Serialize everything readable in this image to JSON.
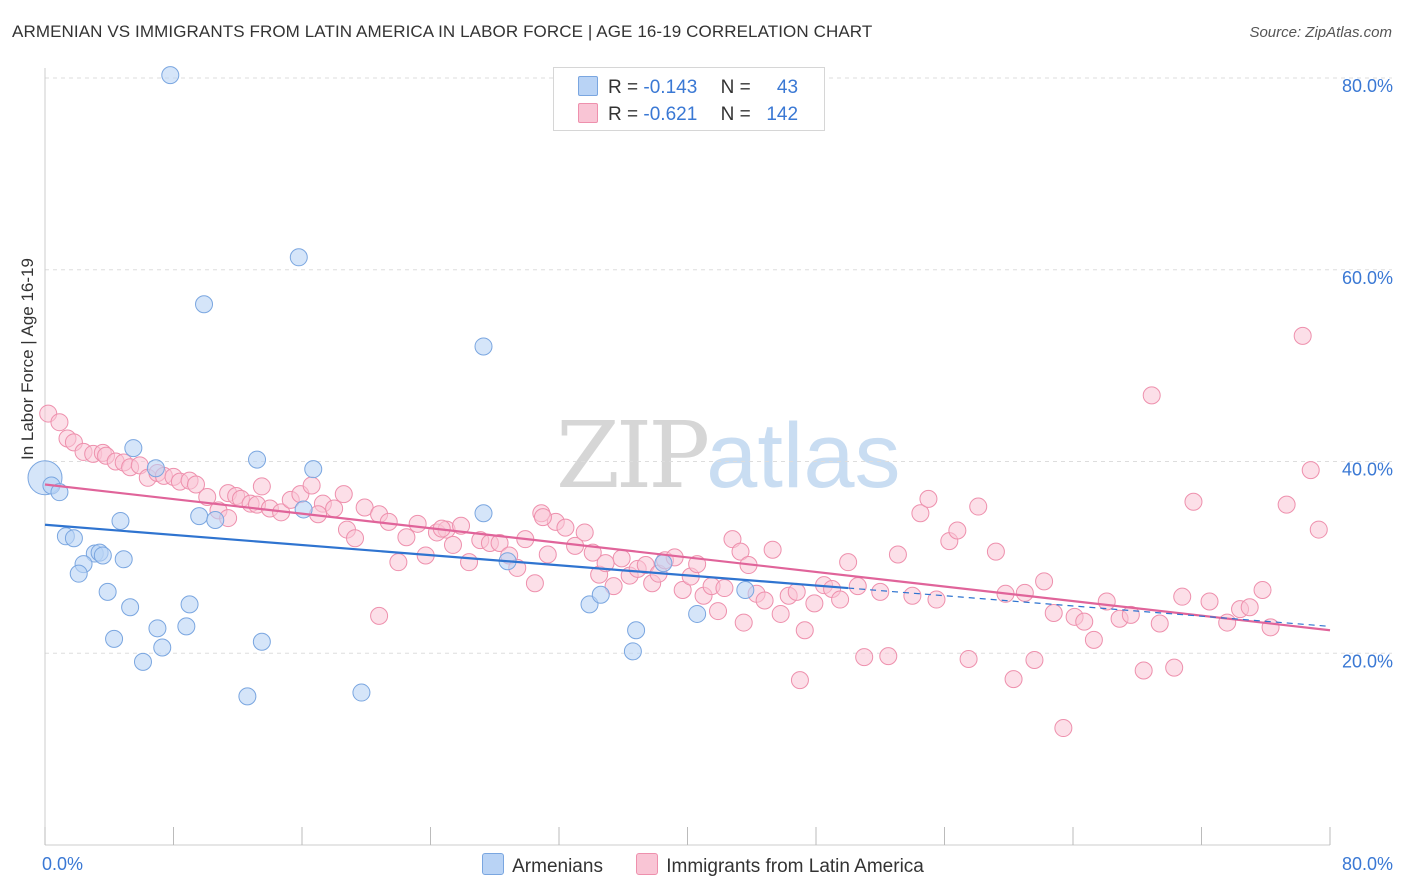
{
  "title": "ARMENIAN VS IMMIGRANTS FROM LATIN AMERICA IN LABOR FORCE | AGE 16-19 CORRELATION CHART",
  "source": "Source: ZipAtlas.com",
  "watermark": {
    "zip": "ZIP",
    "atlas": "atlas"
  },
  "colors": {
    "armenian_fill": "#b9d3f5",
    "armenian_stroke": "#7aa6e0",
    "armenian_line": "#2f74d0",
    "latin_fill": "#f9c5d5",
    "latin_stroke": "#ee90ad",
    "latin_line": "#e0649a",
    "grid": "#dddddd",
    "tick_label": "#3a78d4"
  },
  "legend_top": {
    "rows": [
      {
        "r_label": "R =",
        "r_value": "-0.143",
        "n_label": "N =",
        "n_value": "43"
      },
      {
        "r_label": "R =",
        "r_value": "-0.621",
        "n_label": "N =",
        "n_value": "142"
      }
    ]
  },
  "legend_bottom": [
    "Armenians",
    "Immigrants from Latin America"
  ],
  "chart_data": {
    "type": "scatter",
    "title": "ARMENIAN VS IMMIGRANTS FROM LATIN AMERICA IN LABOR FORCE | AGE 16-19 CORRELATION CHART",
    "xlabel": "",
    "ylabel": "In Labor Force | Age 16-19",
    "xlim": [
      0,
      80
    ],
    "ylim": [
      0,
      80
    ],
    "x_tick_labels": [
      "0.0%",
      "80.0%"
    ],
    "y_ticks": [
      20,
      40,
      60,
      80
    ],
    "y_tick_labels": [
      "20.0%",
      "40.0%",
      "60.0%",
      "80.0%"
    ],
    "grid": true,
    "legend_position": "top-center",
    "series": [
      {
        "name": "Armenians",
        "r": -0.143,
        "n": 43,
        "trend": {
          "x0": 0,
          "y0": 33.4,
          "x1": 50,
          "y1": 26.8,
          "dashed_to": 80,
          "dashed_y": 22.8
        },
        "points": [
          [
            7.8,
            80.3
          ],
          [
            15.8,
            61.3
          ],
          [
            9.9,
            56.4
          ],
          [
            27.3,
            52.0
          ],
          [
            0.0,
            38.3
          ],
          [
            0.4,
            37.5
          ],
          [
            0.9,
            36.8
          ],
          [
            5.5,
            41.4
          ],
          [
            13.2,
            40.2
          ],
          [
            16.7,
            39.2
          ],
          [
            6.9,
            39.3
          ],
          [
            16.1,
            35.0
          ],
          [
            27.3,
            34.6
          ],
          [
            9.6,
            34.3
          ],
          [
            10.6,
            33.9
          ],
          [
            4.7,
            33.8
          ],
          [
            1.3,
            32.2
          ],
          [
            1.8,
            32.0
          ],
          [
            3.1,
            30.4
          ],
          [
            3.4,
            30.5
          ],
          [
            3.6,
            30.2
          ],
          [
            4.9,
            29.8
          ],
          [
            2.4,
            29.3
          ],
          [
            2.1,
            28.3
          ],
          [
            3.9,
            26.4
          ],
          [
            5.3,
            24.8
          ],
          [
            9.0,
            25.1
          ],
          [
            8.8,
            22.8
          ],
          [
            7.0,
            22.6
          ],
          [
            4.3,
            21.5
          ],
          [
            13.5,
            21.2
          ],
          [
            7.3,
            20.6
          ],
          [
            6.1,
            19.1
          ],
          [
            12.6,
            15.5
          ],
          [
            19.7,
            15.9
          ],
          [
            28.8,
            29.6
          ],
          [
            33.9,
            25.1
          ],
          [
            34.6,
            26.1
          ],
          [
            36.8,
            22.4
          ],
          [
            36.6,
            20.2
          ],
          [
            38.5,
            29.4
          ],
          [
            40.6,
            24.1
          ],
          [
            43.6,
            26.6
          ]
        ]
      },
      {
        "name": "Immigrants from Latin America",
        "r": -0.621,
        "n": 142,
        "trend": {
          "x0": 0,
          "y0": 37.6,
          "x1": 80,
          "y1": 22.4
        },
        "points": [
          [
            0.2,
            45.0
          ],
          [
            0.9,
            44.1
          ],
          [
            1.4,
            42.4
          ],
          [
            1.8,
            42.0
          ],
          [
            2.4,
            41.0
          ],
          [
            3.0,
            40.8
          ],
          [
            3.6,
            40.9
          ],
          [
            3.8,
            40.6
          ],
          [
            4.4,
            40.0
          ],
          [
            4.9,
            39.9
          ],
          [
            5.3,
            39.4
          ],
          [
            5.9,
            39.6
          ],
          [
            6.4,
            38.3
          ],
          [
            7.0,
            38.8
          ],
          [
            7.4,
            38.5
          ],
          [
            8.0,
            38.4
          ],
          [
            8.4,
            37.9
          ],
          [
            9.0,
            38.0
          ],
          [
            9.4,
            37.6
          ],
          [
            10.1,
            36.3
          ],
          [
            10.8,
            34.9
          ],
          [
            11.4,
            36.7
          ],
          [
            11.9,
            36.4
          ],
          [
            12.2,
            36.1
          ],
          [
            12.8,
            35.6
          ],
          [
            13.2,
            35.5
          ],
          [
            13.5,
            37.4
          ],
          [
            14.0,
            35.1
          ],
          [
            14.7,
            34.7
          ],
          [
            15.3,
            36.0
          ],
          [
            15.9,
            36.6
          ],
          [
            16.6,
            37.5
          ],
          [
            17.3,
            35.6
          ],
          [
            18.0,
            35.1
          ],
          [
            18.8,
            32.9
          ],
          [
            19.3,
            32.0
          ],
          [
            18.6,
            36.6
          ],
          [
            19.9,
            35.2
          ],
          [
            20.8,
            34.5
          ],
          [
            21.4,
            33.7
          ],
          [
            22.0,
            29.5
          ],
          [
            22.5,
            32.1
          ],
          [
            23.2,
            33.5
          ],
          [
            23.7,
            30.2
          ],
          [
            24.4,
            32.6
          ],
          [
            25.0,
            32.9
          ],
          [
            25.4,
            31.3
          ],
          [
            25.9,
            33.3
          ],
          [
            26.4,
            29.5
          ],
          [
            27.1,
            31.8
          ],
          [
            27.7,
            31.5
          ],
          [
            28.3,
            31.5
          ],
          [
            28.9,
            30.2
          ],
          [
            29.4,
            28.9
          ],
          [
            29.9,
            31.9
          ],
          [
            30.5,
            27.3
          ],
          [
            30.9,
            34.6
          ],
          [
            31.3,
            30.3
          ],
          [
            31.8,
            33.7
          ],
          [
            32.4,
            33.1
          ],
          [
            33.0,
            31.2
          ],
          [
            33.6,
            32.6
          ],
          [
            34.1,
            30.5
          ],
          [
            34.5,
            28.2
          ],
          [
            34.9,
            29.4
          ],
          [
            35.4,
            27.0
          ],
          [
            35.9,
            29.9
          ],
          [
            36.4,
            28.1
          ],
          [
            36.9,
            28.8
          ],
          [
            37.4,
            29.2
          ],
          [
            37.8,
            27.3
          ],
          [
            38.2,
            28.3
          ],
          [
            38.6,
            29.7
          ],
          [
            39.2,
            30.0
          ],
          [
            39.7,
            26.6
          ],
          [
            40.2,
            28.0
          ],
          [
            40.6,
            29.3
          ],
          [
            41.0,
            26.0
          ],
          [
            41.5,
            27.0
          ],
          [
            41.9,
            24.4
          ],
          [
            42.3,
            26.8
          ],
          [
            42.8,
            31.9
          ],
          [
            43.3,
            30.6
          ],
          [
            43.8,
            29.2
          ],
          [
            44.3,
            26.2
          ],
          [
            44.8,
            25.5
          ],
          [
            45.3,
            30.8
          ],
          [
            45.8,
            24.1
          ],
          [
            46.3,
            26.0
          ],
          [
            46.8,
            26.4
          ],
          [
            47.3,
            22.4
          ],
          [
            47.9,
            25.2
          ],
          [
            48.5,
            27.1
          ],
          [
            49.0,
            26.7
          ],
          [
            49.5,
            25.6
          ],
          [
            50.0,
            29.5
          ],
          [
            51.0,
            19.6
          ],
          [
            52.0,
            26.4
          ],
          [
            52.5,
            19.7
          ],
          [
            53.1,
            30.3
          ],
          [
            54.0,
            26.0
          ],
          [
            54.5,
            34.6
          ],
          [
            55.0,
            36.1
          ],
          [
            55.5,
            25.6
          ],
          [
            56.3,
            31.7
          ],
          [
            56.8,
            32.8
          ],
          [
            57.5,
            19.4
          ],
          [
            58.1,
            35.3
          ],
          [
            59.2,
            30.6
          ],
          [
            59.8,
            26.2
          ],
          [
            60.3,
            17.3
          ],
          [
            61.0,
            26.3
          ],
          [
            61.6,
            19.3
          ],
          [
            62.2,
            27.5
          ],
          [
            62.8,
            24.2
          ],
          [
            63.4,
            12.2
          ],
          [
            64.1,
            23.8
          ],
          [
            64.7,
            23.3
          ],
          [
            65.3,
            21.4
          ],
          [
            66.1,
            25.4
          ],
          [
            66.9,
            23.6
          ],
          [
            67.6,
            24.0
          ],
          [
            68.4,
            18.2
          ],
          [
            68.9,
            46.9
          ],
          [
            69.4,
            23.1
          ],
          [
            70.3,
            18.5
          ],
          [
            70.8,
            25.9
          ],
          [
            71.5,
            35.8
          ],
          [
            72.5,
            25.4
          ],
          [
            73.6,
            23.2
          ],
          [
            74.4,
            24.6
          ],
          [
            75.0,
            24.8
          ],
          [
            75.8,
            26.6
          ],
          [
            76.3,
            22.7
          ],
          [
            77.3,
            35.5
          ],
          [
            78.3,
            53.1
          ],
          [
            78.8,
            39.1
          ],
          [
            79.3,
            32.9
          ],
          [
            11.4,
            34.1
          ],
          [
            17.0,
            34.5
          ],
          [
            20.8,
            23.9
          ],
          [
            24.7,
            33.0
          ],
          [
            31.0,
            34.2
          ],
          [
            47.0,
            17.2
          ],
          [
            43.5,
            23.2
          ],
          [
            50.6,
            27.0
          ]
        ]
      }
    ]
  },
  "axes": {
    "ylabel": "In Labor Force | Age 16-19",
    "x_left_label": "0.0%",
    "x_right_label": "80.0%"
  }
}
